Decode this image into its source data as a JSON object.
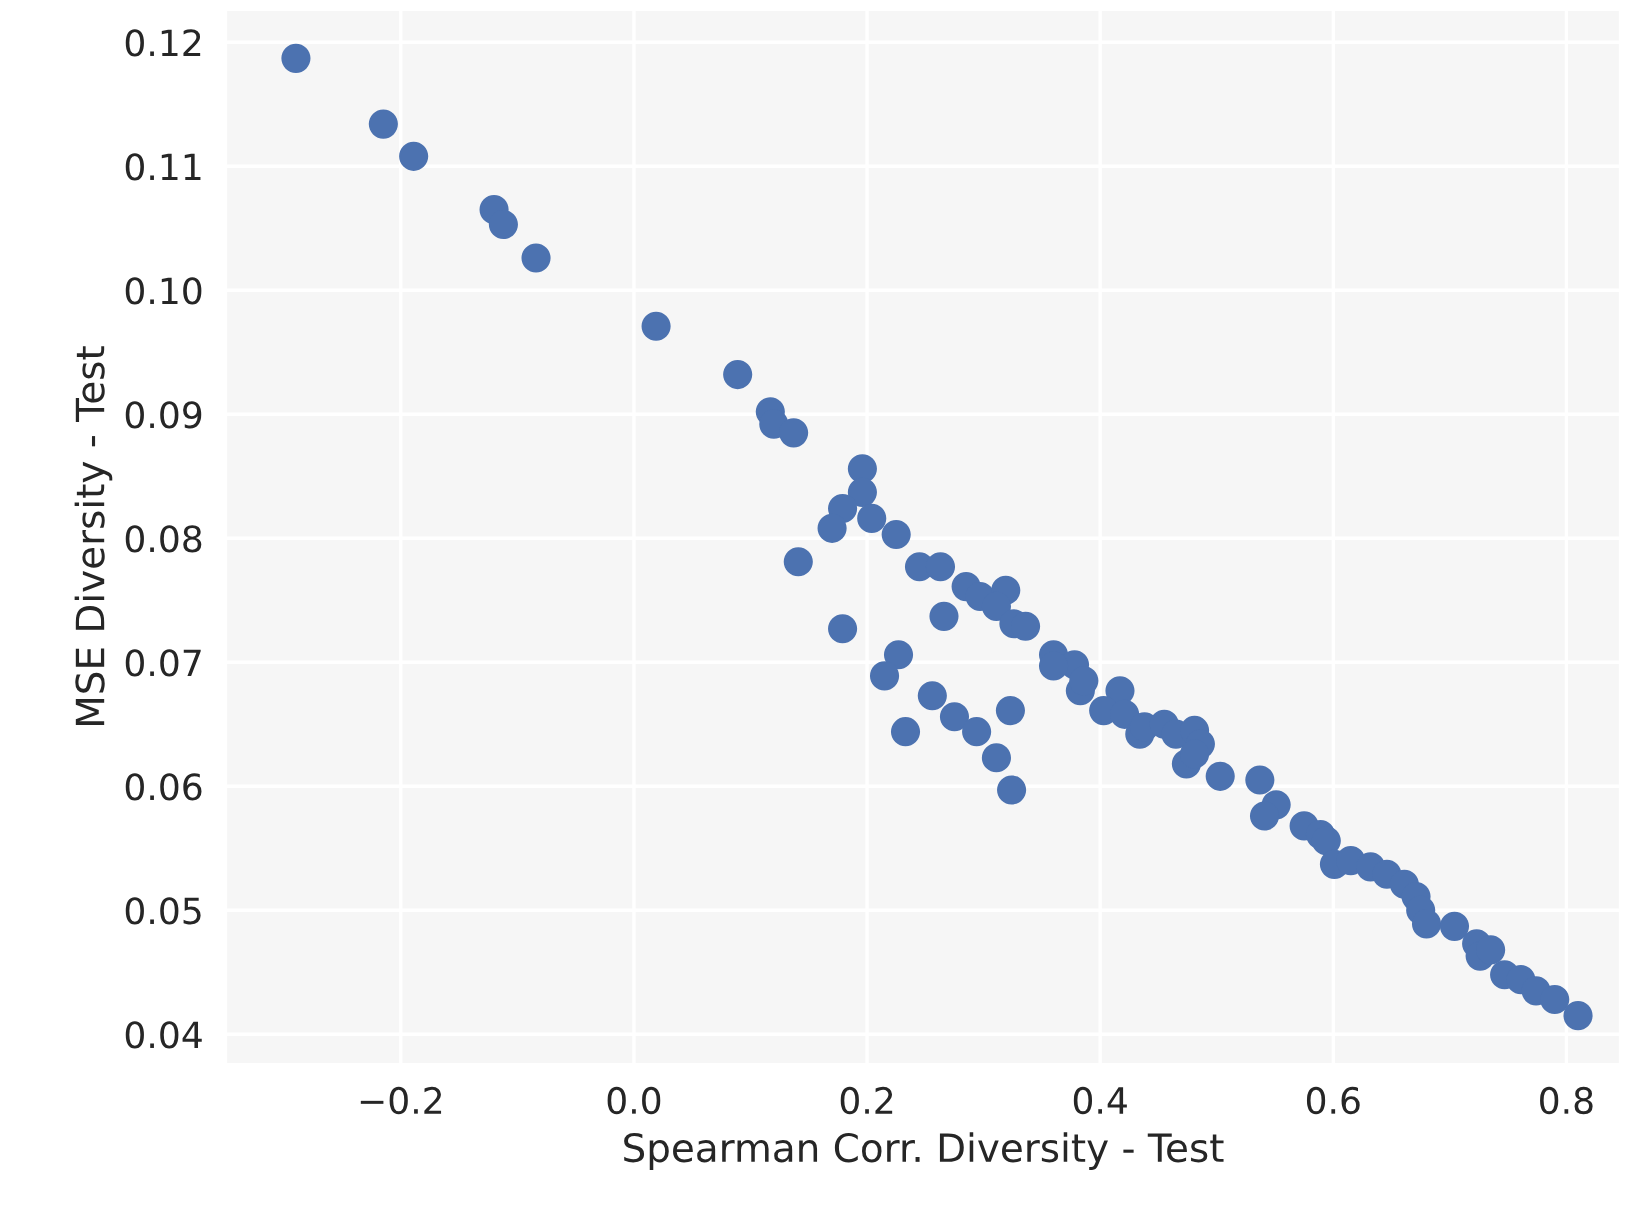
{
  "chart_data": {
    "type": "scatter",
    "xlabel": "Spearman Corr. Diversity - Test",
    "ylabel": "MSE Diversity - Test",
    "xlim": [
      -0.35,
      0.846
    ],
    "ylim": [
      0.0376,
      0.1226
    ],
    "xticks": [
      {
        "value": -0.2,
        "label": "−0.2"
      },
      {
        "value": 0.0,
        "label": "0.0"
      },
      {
        "value": 0.2,
        "label": "0.2"
      },
      {
        "value": 0.4,
        "label": "0.4"
      },
      {
        "value": 0.6,
        "label": "0.6"
      },
      {
        "value": 0.8,
        "label": "0.8"
      }
    ],
    "yticks": [
      {
        "value": 0.04,
        "label": "0.04"
      },
      {
        "value": 0.05,
        "label": "0.05"
      },
      {
        "value": 0.06,
        "label": "0.06"
      },
      {
        "value": 0.07,
        "label": "0.07"
      },
      {
        "value": 0.08,
        "label": "0.08"
      },
      {
        "value": 0.09,
        "label": "0.09"
      },
      {
        "value": 0.1,
        "label": "0.10"
      },
      {
        "value": 0.11,
        "label": "0.11"
      },
      {
        "value": 0.12,
        "label": "0.12"
      }
    ],
    "grid": true,
    "marker": "circle",
    "series": [
      {
        "color": "#4c72b0",
        "x": [
          -0.29,
          -0.215,
          -0.189,
          -0.12,
          -0.112,
          -0.084,
          0.019,
          0.089,
          0.117,
          0.12,
          0.137,
          0.141,
          0.196,
          0.196,
          0.179,
          0.17,
          0.204,
          0.225,
          0.245,
          0.263,
          0.285,
          0.297,
          0.319,
          0.311,
          0.326,
          0.336,
          0.266,
          0.179,
          0.227,
          0.215,
          0.256,
          0.275,
          0.294,
          0.233,
          0.323,
          0.311,
          0.324,
          0.36,
          0.378,
          0.36,
          0.383,
          0.386,
          0.417,
          0.403,
          0.421,
          0.434,
          0.438,
          0.455,
          0.465,
          0.481,
          0.486,
          0.474,
          0.481,
          0.503,
          0.537,
          0.551,
          0.541,
          0.575,
          0.589,
          0.594,
          0.601,
          0.615,
          0.632,
          0.646,
          0.661,
          0.671,
          0.675,
          0.68,
          0.704,
          0.723,
          0.726,
          0.735,
          0.747,
          0.761,
          0.774,
          0.79,
          0.81
        ],
        "values": [
          0.1187,
          0.1134,
          0.1108,
          0.1065,
          0.1053,
          0.1026,
          0.0971,
          0.0932,
          0.0902,
          0.0892,
          0.0885,
          0.0781,
          0.0856,
          0.0837,
          0.0824,
          0.0808,
          0.0816,
          0.0803,
          0.0777,
          0.0777,
          0.0761,
          0.0753,
          0.0758,
          0.0745,
          0.0731,
          0.0729,
          0.0737,
          0.0727,
          0.0706,
          0.0689,
          0.0673,
          0.0656,
          0.0644,
          0.0644,
          0.0661,
          0.0623,
          0.0597,
          0.0706,
          0.0698,
          0.0697,
          0.0677,
          0.0685,
          0.0677,
          0.0661,
          0.0658,
          0.0642,
          0.0648,
          0.065,
          0.0642,
          0.0645,
          0.0634,
          0.0618,
          0.0626,
          0.0608,
          0.0605,
          0.0585,
          0.0576,
          0.0568,
          0.0561,
          0.0556,
          0.0537,
          0.054,
          0.0535,
          0.0529,
          0.0521,
          0.0511,
          0.05,
          0.0489,
          0.0487,
          0.0473,
          0.0463,
          0.0468,
          0.0448,
          0.0444,
          0.0435,
          0.0428,
          0.0415
        ]
      }
    ]
  }
}
